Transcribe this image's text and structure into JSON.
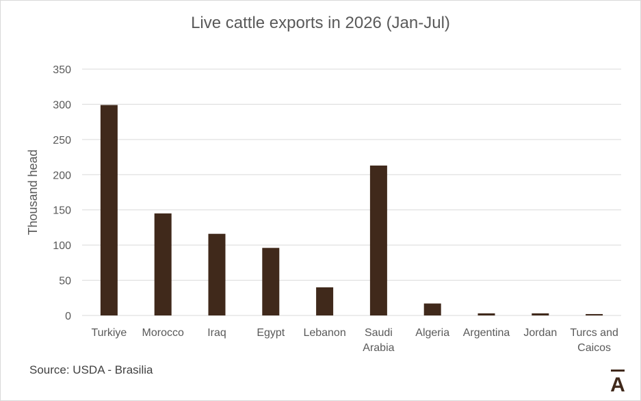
{
  "chart_data": {
    "type": "bar",
    "title": "Live cattle exports in 2026 (Jan-Jul)",
    "ylabel": "Thousand head",
    "xlabel": "",
    "ylim": [
      0,
      350
    ],
    "yticks": [
      0,
      50,
      100,
      150,
      200,
      250,
      300,
      350
    ],
    "categories": [
      "Turkiye",
      "Morocco",
      "Iraq",
      "Egypt",
      "Lebanon",
      "Saudi Arabia",
      "Algeria",
      "Argentina",
      "Jordan",
      "Turcs and Caicos"
    ],
    "values": [
      299,
      145,
      116,
      96,
      40,
      213,
      17,
      3,
      3,
      2
    ],
    "grid": true,
    "bar_color": "#40291b",
    "grid_color": "#d9d9d9"
  },
  "footer": {
    "source": "Source: USDA - Brasilia",
    "logo_letter": "A"
  }
}
